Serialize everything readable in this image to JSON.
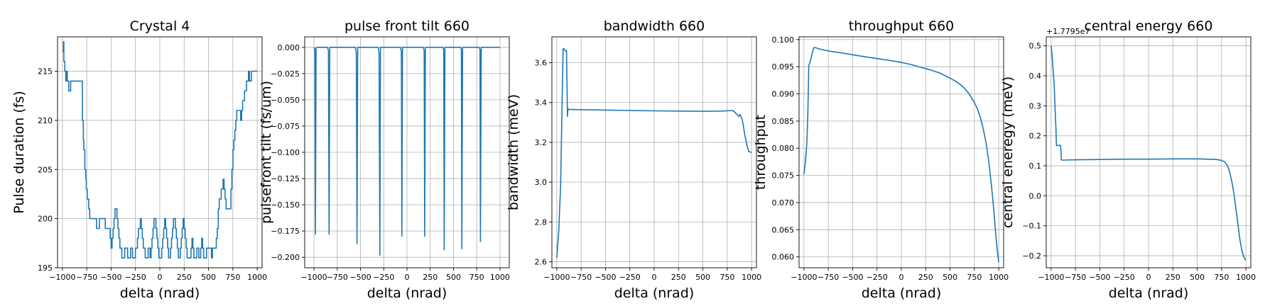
{
  "colors": {
    "series": "#1f77b4",
    "grid": "#b0b0b0",
    "background": "#ffffff"
  },
  "chart_data": [
    {
      "type": "line",
      "title": "Crystal 4",
      "xlabel": "delta (nrad)",
      "ylabel": "Pulse duration (fs)",
      "xlim": [
        -1050,
        1050
      ],
      "ylim": [
        195,
        218.5
      ],
      "xticks": [
        -1000,
        -750,
        -500,
        -250,
        0,
        250,
        500,
        750,
        1000
      ],
      "yticks": [
        195,
        200,
        205,
        210,
        215
      ],
      "ytick_labels": [
        "195",
        "200",
        "205",
        "210",
        "215"
      ],
      "grid": true,
      "step": true,
      "series": [
        {
          "x": [
            -1000,
            -990,
            -985,
            -975,
            -965,
            -958,
            -950,
            -940,
            -935,
            -925,
            -915,
            -900,
            -880,
            -850,
            -800,
            -795,
            -785,
            -780,
            -770,
            -760,
            -755,
            -745,
            -740,
            -730,
            -720,
            -710,
            -700,
            -690,
            -680,
            -670,
            -660,
            -650,
            -640,
            -630,
            -620,
            -600,
            -580,
            -560,
            -540,
            -520,
            -510,
            -500,
            -490,
            -480,
            -470,
            -460,
            -450,
            -440,
            -430,
            -420,
            -410,
            -400,
            -390,
            -380,
            -370,
            -360,
            -350,
            -340,
            -330,
            -320,
            -310,
            -300,
            -290,
            -280,
            -270,
            -260,
            -250,
            -240,
            -230,
            -220,
            -210,
            -200,
            -190,
            -180,
            -170,
            -160,
            -150,
            -140,
            -130,
            -120,
            -110,
            -100,
            -90,
            -80,
            -70,
            -60,
            -50,
            -40,
            -30,
            -20,
            -10,
            0,
            10,
            20,
            30,
            40,
            50,
            60,
            70,
            80,
            90,
            100,
            110,
            120,
            130,
            140,
            150,
            160,
            170,
            180,
            190,
            200,
            210,
            220,
            230,
            240,
            250,
            260,
            270,
            280,
            290,
            300,
            310,
            320,
            330,
            340,
            350,
            360,
            370,
            380,
            390,
            400,
            410,
            420,
            430,
            440,
            450,
            460,
            470,
            480,
            490,
            500,
            510,
            520,
            530,
            540,
            550,
            560,
            570,
            580,
            590,
            600,
            610,
            620,
            630,
            640,
            650,
            660,
            670,
            680,
            690,
            700,
            710,
            720,
            730,
            740,
            750,
            760,
            770,
            780,
            790,
            800,
            810,
            820,
            830,
            840,
            850,
            860,
            870,
            880,
            890,
            900,
            910,
            920,
            930,
            940,
            950,
            960,
            970,
            980,
            990,
            1000
          ],
          "y": [
            217,
            218,
            216,
            215,
            214,
            215,
            214,
            214,
            213,
            213,
            214,
            214,
            214,
            214,
            214,
            210,
            208,
            207,
            205,
            204,
            203,
            202,
            202,
            201,
            200,
            200,
            200,
            200,
            200,
            200,
            200,
            199,
            199,
            199,
            200,
            200,
            200,
            199,
            199,
            199,
            198,
            197,
            198,
            199,
            200,
            201,
            201,
            200,
            199,
            198,
            197,
            197,
            196,
            196,
            196,
            197,
            197,
            197,
            196,
            196,
            196,
            197,
            197,
            196,
            196,
            196,
            197,
            197,
            198,
            199,
            199,
            200,
            199,
            198,
            197,
            197,
            196,
            196,
            196,
            197,
            197,
            196,
            197,
            198,
            199,
            200,
            200,
            199,
            198,
            197,
            196,
            196,
            196,
            197,
            198,
            199,
            200,
            199,
            198,
            197,
            196,
            196,
            197,
            198,
            199,
            200,
            200,
            199,
            198,
            197,
            196,
            196,
            197,
            198,
            199,
            200,
            199,
            198,
            197,
            196,
            196,
            196,
            196,
            197,
            198,
            197,
            196,
            196,
            196,
            197,
            197,
            196,
            196,
            197,
            198,
            197,
            196,
            196,
            196,
            197,
            197,
            197,
            197,
            197,
            196,
            197,
            197,
            197,
            197,
            198,
            199,
            201,
            202,
            202,
            203,
            203,
            204,
            203,
            202,
            201,
            201,
            201,
            201,
            201,
            203,
            205,
            207,
            208,
            209,
            210,
            211,
            211,
            211,
            211,
            210,
            211,
            212,
            212,
            213,
            213,
            214,
            214,
            215,
            214,
            214,
            215,
            215,
            215,
            215,
            215,
            215,
            215
          ]
        }
      ]
    },
    {
      "type": "line",
      "title": "pulse front tilt 660",
      "xlabel": "delta (nrad)",
      "ylabel": "pulsefront tilt (fs/um)",
      "xlim": [
        -1100,
        1100
      ],
      "ylim": [
        -0.21,
        0.01
      ],
      "xticks": [
        -1000,
        -750,
        -500,
        -250,
        0,
        250,
        500,
        750,
        1000
      ],
      "yticks": [
        0,
        -0.025,
        -0.05,
        -0.075,
        -0.1,
        -0.125,
        -0.15,
        -0.175,
        -0.2
      ],
      "ytick_labels": [
        "0.000",
        "−0.025",
        "−0.050",
        "−0.075",
        "−0.100",
        "−0.125",
        "−0.150",
        "−0.175",
        "−0.200"
      ],
      "grid": true,
      "series": [
        {
          "x": [
            -1000,
            -990,
            -985,
            -978,
            -968,
            -855,
            -845,
            -838,
            -830,
            -555,
            -545,
            -538,
            -530,
            -310,
            -300,
            -292,
            -285,
            -70,
            -60,
            -55,
            -48,
            175,
            185,
            190,
            198,
            385,
            395,
            400,
            408,
            575,
            585,
            590,
            598,
            775,
            785,
            790,
            798,
            1000
          ],
          "y": [
            0,
            -0.002,
            -0.178,
            -0.001,
            0,
            0,
            -0.003,
            -0.178,
            0,
            0,
            -0.005,
            -0.187,
            0,
            0,
            -0.005,
            -0.198,
            0,
            0,
            -0.004,
            -0.18,
            0,
            0,
            -0.003,
            -0.18,
            0,
            0,
            -0.002,
            -0.193,
            0,
            0,
            -0.002,
            -0.192,
            0,
            0,
            -0.002,
            -0.185,
            0,
            0
          ]
        }
      ]
    },
    {
      "type": "line",
      "title": "bandwidth 660",
      "xlabel": "delta (nrad)",
      "ylabel": "bandwidth (meV)",
      "xlim": [
        -1050,
        1050
      ],
      "ylim": [
        2.57,
        3.73
      ],
      "xticks": [
        -1000,
        -750,
        -500,
        -250,
        0,
        250,
        500,
        750,
        1000
      ],
      "yticks": [
        2.6,
        2.8,
        3.0,
        3.2,
        3.4,
        3.6
      ],
      "ytick_labels": [
        "2.6",
        "2.8",
        "3.0",
        "3.2",
        "3.4",
        "3.6"
      ],
      "grid": true,
      "series": [
        {
          "x": [
            -1000,
            -980,
            -960,
            -945,
            -935,
            -925,
            -920,
            -915,
            -900,
            -890,
            -885,
            -880,
            -860,
            -700,
            -500,
            -250,
            0,
            250,
            500,
            700,
            800,
            820,
            840,
            860,
            870,
            880,
            890,
            900,
            910,
            930,
            950,
            970,
            990,
            1000
          ],
          "y": [
            2.62,
            2.75,
            2.98,
            3.4,
            3.67,
            3.67,
            3.665,
            3.66,
            3.66,
            3.33,
            3.37,
            3.365,
            3.365,
            3.364,
            3.362,
            3.36,
            3.358,
            3.357,
            3.356,
            3.357,
            3.36,
            3.355,
            3.345,
            3.335,
            3.33,
            3.34,
            3.33,
            3.32,
            3.3,
            3.24,
            3.19,
            3.155,
            3.15,
            3.15
          ]
        }
      ]
    },
    {
      "type": "line",
      "title": "throughput 660",
      "xlabel": "delta (nrad)",
      "ylabel": "throughput",
      "xlim": [
        -1050,
        1050
      ],
      "ylim": [
        0.058,
        0.1005
      ],
      "xticks": [
        -1000,
        -750,
        -500,
        -250,
        0,
        250,
        500,
        750,
        1000
      ],
      "yticks": [
        0.06,
        0.065,
        0.07,
        0.075,
        0.08,
        0.085,
        0.09,
        0.095,
        0.1
      ],
      "ytick_labels": [
        "0.060",
        "0.065",
        "0.070",
        "0.075",
        "0.080",
        "0.085",
        "0.090",
        "0.095",
        "0.100"
      ],
      "grid": true,
      "series": [
        {
          "x": [
            -1000,
            -985,
            -970,
            -960,
            -950,
            -945,
            -935,
            -925,
            -915,
            -900,
            -880,
            -850,
            -750,
            -600,
            -500,
            -400,
            -250,
            -100,
            0,
            100,
            200,
            300,
            400,
            500,
            550,
            600,
            650,
            700,
            750,
            780,
            810,
            840,
            870,
            900,
            930,
            950,
            970,
            985,
            1000
          ],
          "y": [
            0.0752,
            0.0775,
            0.081,
            0.086,
            0.0952,
            0.0955,
            0.096,
            0.0967,
            0.0975,
            0.0985,
            0.0985,
            0.0983,
            0.0979,
            0.0975,
            0.0972,
            0.0969,
            0.0965,
            0.0961,
            0.0958,
            0.0954,
            0.0949,
            0.0944,
            0.0938,
            0.0929,
            0.0924,
            0.0918,
            0.091,
            0.0899,
            0.0884,
            0.0873,
            0.0857,
            0.0836,
            0.081,
            0.0772,
            0.0723,
            0.0685,
            0.064,
            0.0612,
            0.059
          ]
        }
      ]
    },
    {
      "type": "line",
      "title": "central energy 660",
      "xlabel": "delta (nrad)",
      "ylabel": "central eneregy (meV)",
      "offset_text": "+1.7795e7",
      "xlim": [
        -1050,
        1050
      ],
      "ylim": [
        -0.24,
        0.53
      ],
      "xticks": [
        -1000,
        -750,
        -500,
        -250,
        0,
        250,
        500,
        750,
        1000
      ],
      "yticks": [
        -0.2,
        -0.1,
        0,
        0.1,
        0.2,
        0.3,
        0.4,
        0.5
      ],
      "ytick_labels": [
        "−0.2",
        "−0.1",
        "0.0",
        "0.1",
        "0.2",
        "0.3",
        "0.4",
        "0.5"
      ],
      "grid": true,
      "series": [
        {
          "x": [
            -1000,
            -990,
            -980,
            -970,
            -960,
            -950,
            -945,
            -940,
            -925,
            -915,
            -905,
            -900,
            -895,
            -885,
            -870,
            -750,
            -500,
            -250,
            0,
            250,
            500,
            600,
            700,
            750,
            780,
            800,
            820,
            840,
            860,
            880,
            900,
            920,
            940,
            960,
            980,
            1000
          ],
          "y": [
            0.5,
            0.47,
            0.42,
            0.38,
            0.3,
            0.22,
            0.168,
            0.168,
            0.168,
            0.168,
            0.168,
            0.155,
            0.12,
            0.119,
            0.119,
            0.12,
            0.121,
            0.122,
            0.122,
            0.123,
            0.123,
            0.122,
            0.121,
            0.118,
            0.113,
            0.105,
            0.092,
            0.07,
            0.04,
            0.0,
            -0.05,
            -0.1,
            -0.15,
            -0.185,
            -0.205,
            -0.215
          ]
        }
      ]
    }
  ]
}
